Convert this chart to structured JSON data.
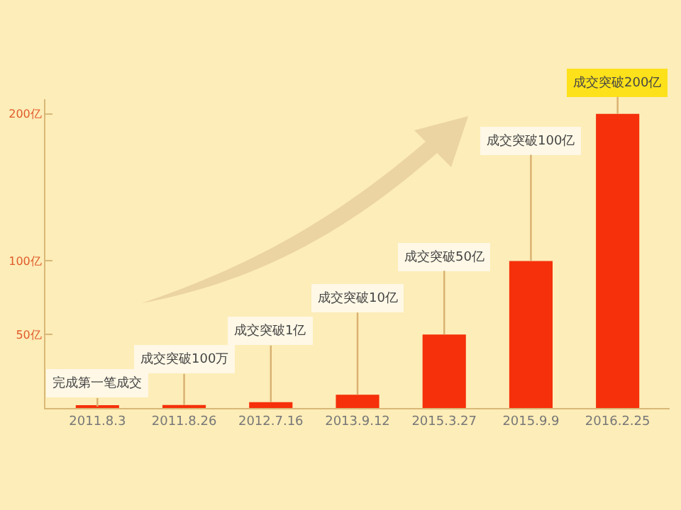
{
  "chart_data": {
    "type": "bar",
    "categories": [
      "2011.8.3",
      "2011.8.26",
      "2012.7.16",
      "2013.9.12",
      "2015.3.27",
      "2015.9.9",
      "2016.2.25"
    ],
    "values": [
      1,
      2,
      4,
      9,
      50,
      100,
      200
    ],
    "color": "#f5300a",
    "ylim": [
      0,
      210
    ],
    "yticks": [
      {
        "value": 50,
        "label": "50亿"
      },
      {
        "value": 100,
        "label": "100亿"
      },
      {
        "value": 200,
        "label": "200亿"
      }
    ],
    "annotations": [
      {
        "text": "完成第一笔成交",
        "x": "2011.8.3",
        "y": 1
      },
      {
        "text": "成交突破100万",
        "x": "2011.8.26",
        "y": 2
      },
      {
        "text": "成交突破1亿",
        "x": "2012.7.16",
        "y": 4
      },
      {
        "text": "成交突破10亿",
        "x": "2013.9.12",
        "y": 9
      },
      {
        "text": "成交突破50亿",
        "x": "2015.3.27",
        "y": 50
      },
      {
        "text": "成交突破100亿",
        "x": "2015.9.9",
        "y": 100
      },
      {
        "text": "成交突破200亿",
        "x": "2016.2.25",
        "y": 200
      }
    ]
  }
}
